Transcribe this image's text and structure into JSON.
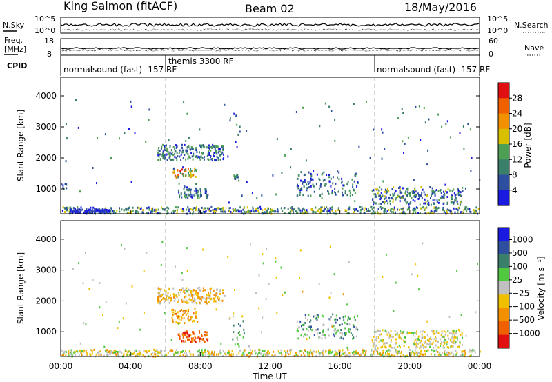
{
  "header": {
    "station": "King Salmon (fitACF)",
    "beam": "Beam 02",
    "date": "18/May/2016"
  },
  "top_panels": {
    "nsky_label": "N.Sky",
    "nsearch_label": "N.Search",
    "freq_label_line1": "Freq.",
    "freq_label_line2": "[MHz]",
    "nave_label": "Nave",
    "cpid_label": "CPID",
    "nsky_ticks": [
      "10^5",
      "10^0"
    ],
    "nsearch_ticks": [
      "10^5",
      "10^0"
    ],
    "freq_ticks": [
      "18",
      "8"
    ],
    "nave_ticks": [
      "60",
      "0"
    ]
  },
  "cpid_segments": [
    {
      "label": "normalsound (fast) -157 RF",
      "start_hour": 0.0
    },
    {
      "label": "themis 3300 RF",
      "start_hour": 5.97
    },
    {
      "label": "normalsound (fast) -157 RF",
      "start_hour": 18.0
    }
  ],
  "chart_data": [
    {
      "type": "heatmap",
      "id": "power",
      "xlabel": "",
      "ylabel": "Slant Range [km]",
      "xlim": [
        0,
        24
      ],
      "ylim": [
        200,
        4600
      ],
      "yticks": [
        "1000",
        "2000",
        "3000",
        "4000"
      ],
      "colorbar_label": "Power [dB]",
      "colorbar_ticks": [
        "4",
        "8",
        "12",
        "16",
        "20",
        "24",
        "28"
      ],
      "colorbar_colors": [
        "#1a1ae0",
        "#2e4fa0",
        "#3a7f6a",
        "#4e9f55",
        "#d8c000",
        "#f29000",
        "#f06000",
        "#e01010"
      ],
      "clusters": [
        {
          "t0": 5.5,
          "t1": 9.3,
          "r0": 1950,
          "r1": 2450,
          "n": 200,
          "c": [
            0.05,
            0.5
          ]
        },
        {
          "t0": 6.7,
          "t1": 8.4,
          "r0": 750,
          "r1": 1050,
          "n": 70,
          "c": [
            0.1,
            0.45
          ]
        },
        {
          "t0": 6.4,
          "t1": 7.8,
          "r0": 1400,
          "r1": 1700,
          "n": 45,
          "c": [
            0.25,
            0.95
          ]
        },
        {
          "t0": 0.0,
          "t1": 24.0,
          "r0": 230,
          "r1": 450,
          "n": 600,
          "c": [
            0.05,
            0.6
          ]
        },
        {
          "t0": 0.5,
          "t1": 2.8,
          "r0": 240,
          "r1": 380,
          "n": 100,
          "c": [
            0.0,
            0.2
          ]
        },
        {
          "t0": 13.5,
          "t1": 17.0,
          "r0": 800,
          "r1": 1600,
          "n": 120,
          "c": [
            0.05,
            0.4
          ]
        },
        {
          "t0": 17.8,
          "t1": 23.0,
          "r0": 500,
          "r1": 1100,
          "n": 240,
          "c": [
            0.05,
            0.55
          ]
        },
        {
          "t0": 9.8,
          "t1": 10.2,
          "r0": 1250,
          "r1": 1500,
          "n": 12,
          "c": [
            0.2,
            0.4
          ]
        },
        {
          "t0": 0.0,
          "t1": 0.3,
          "r0": 1000,
          "r1": 1200,
          "n": 8,
          "c": [
            0.1,
            0.3
          ]
        },
        {
          "t0": 0.0,
          "t1": 24.0,
          "r0": 500,
          "r1": 4000,
          "n": 120,
          "c": [
            0.05,
            0.5
          ]
        }
      ]
    },
    {
      "type": "heatmap",
      "id": "velocity",
      "xlabel": "Time UT",
      "ylabel": "Slant Range [km]",
      "xlim": [
        0,
        24
      ],
      "ylim": [
        200,
        4600
      ],
      "xticks": [
        "00:00",
        "04:00",
        "08:00",
        "12:00",
        "16:00",
        "20:00",
        "00:00"
      ],
      "yticks": [
        "1000",
        "2000",
        "3000",
        "4000"
      ],
      "colorbar_label": "Velocity [m s⁻¹]",
      "colorbar_ticks": [
        "1000",
        "500",
        "100",
        "25",
        "−25",
        "−100",
        "−500",
        "−1000"
      ],
      "colorbar_colors": [
        "#1a1ae0",
        "#2e4fa0",
        "#3a7f6a",
        "#50c840",
        "#c0c0c0",
        "#f0c000",
        "#f29000",
        "#f06000",
        "#e01010"
      ],
      "clusters": [
        {
          "t0": 5.5,
          "t1": 9.3,
          "r0": 1950,
          "r1": 2450,
          "n": 200,
          "c": [
            0.45,
            0.75
          ]
        },
        {
          "t0": 6.7,
          "t1": 8.4,
          "r0": 700,
          "r1": 1050,
          "n": 80,
          "c": [
            0.75,
            0.95
          ]
        },
        {
          "t0": 6.3,
          "t1": 7.8,
          "r0": 1300,
          "r1": 1800,
          "n": 60,
          "c": [
            0.6,
            0.8
          ]
        },
        {
          "t0": 0.0,
          "t1": 24.0,
          "r0": 230,
          "r1": 450,
          "n": 600,
          "c": [
            0.35,
            0.75
          ]
        },
        {
          "t0": 13.5,
          "t1": 17.0,
          "r0": 800,
          "r1": 1600,
          "n": 120,
          "c": [
            0.15,
            0.55
          ]
        },
        {
          "t0": 17.8,
          "t1": 23.0,
          "r0": 500,
          "r1": 1100,
          "n": 240,
          "c": [
            0.4,
            0.65
          ]
        },
        {
          "t0": 9.8,
          "t1": 10.5,
          "r0": 550,
          "r1": 1500,
          "n": 16,
          "c": [
            0.2,
            0.4
          ]
        },
        {
          "t0": 0.0,
          "t1": 24.0,
          "r0": 500,
          "r1": 4000,
          "n": 110,
          "c": [
            0.35,
            0.7
          ]
        }
      ]
    }
  ]
}
